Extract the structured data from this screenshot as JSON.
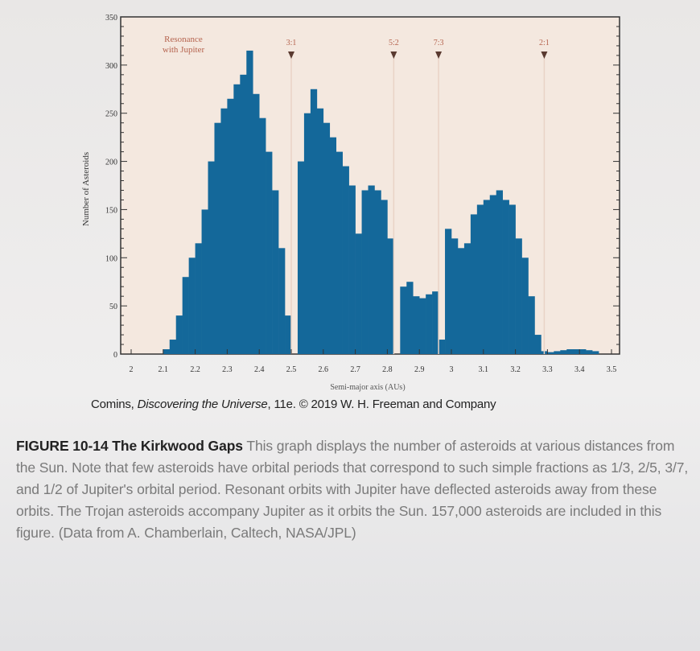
{
  "chart_data": {
    "type": "bar",
    "xlabel": "Semi-major axis (AUs)",
    "ylabel": "Number of Asteroids",
    "xlim": [
      2.0,
      3.5
    ],
    "ylim": [
      0,
      350
    ],
    "x_ticks": [
      "2",
      "2.1",
      "2.2",
      "2.3",
      "2.4",
      "2.5",
      "2.6",
      "2.7",
      "2.8",
      "2.9",
      "3",
      "3.1",
      "3.2",
      "3.3",
      "3.4",
      "3.5"
    ],
    "y_ticks": [
      "0",
      "50",
      "100",
      "150",
      "200",
      "250",
      "300",
      "350"
    ],
    "bin_width": 0.02,
    "x": [
      2.0,
      2.02,
      2.04,
      2.06,
      2.08,
      2.1,
      2.12,
      2.14,
      2.16,
      2.18,
      2.2,
      2.22,
      2.24,
      2.26,
      2.28,
      2.3,
      2.32,
      2.34,
      2.36,
      2.38,
      2.4,
      2.42,
      2.44,
      2.46,
      2.48,
      2.5,
      2.52,
      2.54,
      2.56,
      2.58,
      2.6,
      2.62,
      2.64,
      2.66,
      2.68,
      2.7,
      2.72,
      2.74,
      2.76,
      2.78,
      2.8,
      2.82,
      2.84,
      2.86,
      2.88,
      2.9,
      2.92,
      2.94,
      2.96,
      2.98,
      3.0,
      3.02,
      3.04,
      3.06,
      3.08,
      3.1,
      3.12,
      3.14,
      3.16,
      3.18,
      3.2,
      3.22,
      3.24,
      3.26,
      3.28,
      3.3,
      3.32,
      3.34,
      3.36,
      3.38,
      3.4,
      3.42,
      3.44,
      3.46,
      3.48
    ],
    "values": [
      0,
      0,
      0,
      0,
      0,
      5,
      15,
      40,
      80,
      100,
      115,
      150,
      200,
      240,
      255,
      265,
      280,
      290,
      315,
      270,
      245,
      210,
      170,
      110,
      40,
      0,
      200,
      250,
      275,
      255,
      240,
      225,
      210,
      195,
      175,
      125,
      170,
      175,
      170,
      160,
      120,
      0,
      70,
      75,
      60,
      58,
      62,
      65,
      15,
      130,
      120,
      110,
      115,
      145,
      155,
      160,
      165,
      170,
      160,
      155,
      120,
      100,
      60,
      20,
      3,
      2,
      3,
      4,
      5,
      5,
      5,
      4,
      3,
      0,
      0
    ],
    "annotations": {
      "title": "Resonance with Jupiter",
      "title_lines": [
        "Resonance",
        "with Jupiter"
      ],
      "resonances": [
        {
          "label": "3:1",
          "x": 2.5
        },
        {
          "label": "5:2",
          "x": 2.82
        },
        {
          "label": "7:3",
          "x": 2.96
        },
        {
          "label": "2:1",
          "x": 3.29
        }
      ]
    },
    "grid": false,
    "colors": {
      "bars": "#14689a",
      "plot_bg": "#f4e8df",
      "annotation": "#b5634e",
      "resonance_line": "#e9d3c6"
    }
  },
  "credit": {
    "author": "Comins, ",
    "book": "Discovering the Universe",
    "rest": ", 11e. © 2019 W. H. Freeman and Company"
  },
  "caption": {
    "title": "FIGURE 10-14 The Kirkwood Gaps",
    "body": " This graph displays the number of asteroids at various distances from the Sun. Note that few asteroids have orbital periods that correspond to such simple fractions as 1/3, 2/5, 3/7, and 1/2 of Jupiter's orbital period. Resonant orbits with Jupiter have deflected asteroids away from these orbits. The Trojan asteroids accompany Jupiter as it orbits the Sun. 157,000 asteroids are included in this figure. (Data from A. Chamberlain, Caltech, NASA/JPL)"
  }
}
